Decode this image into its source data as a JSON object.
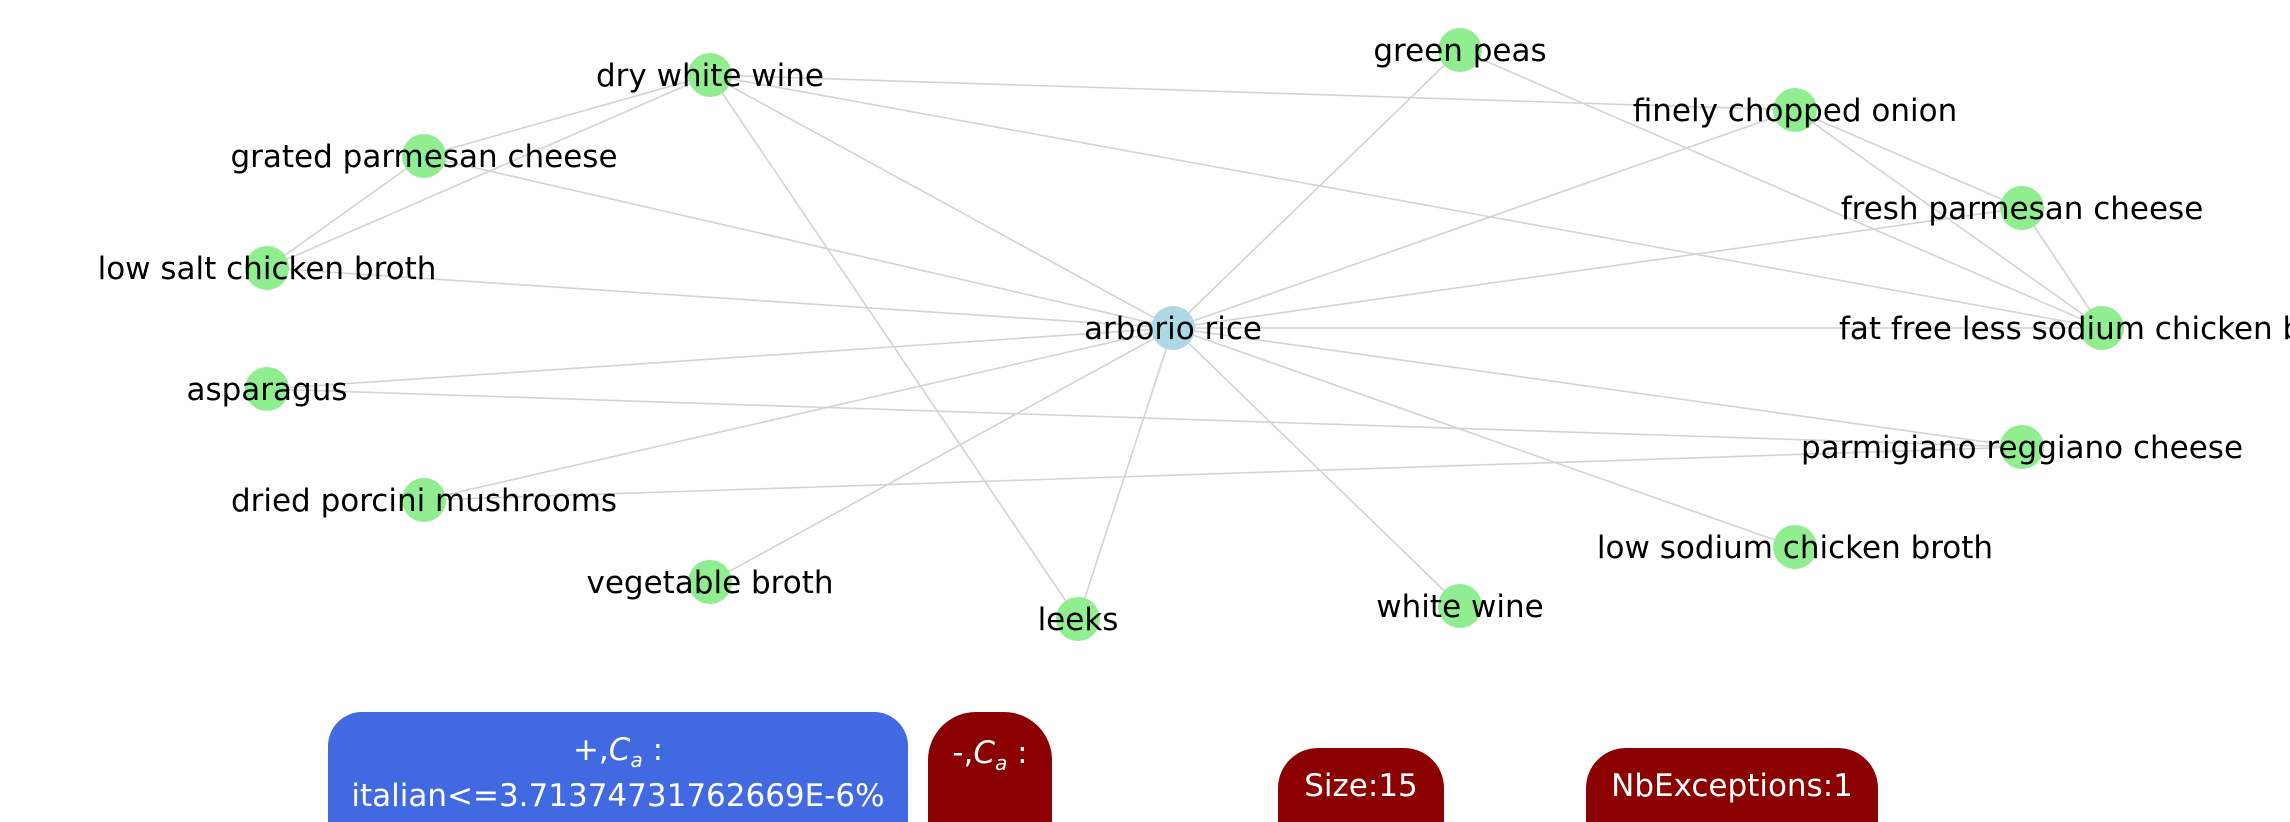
{
  "graph": {
    "center": {
      "id": "arborio",
      "label": "arborio rice",
      "color": "#add8e6"
    },
    "nodes": [
      {
        "id": "dry_white_wine",
        "label": "dry white wine"
      },
      {
        "id": "grated_parmesan",
        "label": "grated parmesan cheese"
      },
      {
        "id": "low_salt_chicken",
        "label": "low salt chicken broth"
      },
      {
        "id": "asparagus",
        "label": "asparagus"
      },
      {
        "id": "porcini",
        "label": "dried porcini mushrooms"
      },
      {
        "id": "vegetable_broth",
        "label": "vegetable broth"
      },
      {
        "id": "leeks",
        "label": "leeks"
      },
      {
        "id": "white_wine",
        "label": "white wine"
      },
      {
        "id": "low_sodium_chicken",
        "label": "low sodium chicken broth"
      },
      {
        "id": "parmigiano",
        "label": "parmigiano reggiano cheese"
      },
      {
        "id": "fat_free_chicken",
        "label": "fat free less sodium chicken broth"
      },
      {
        "id": "fresh_parmesan",
        "label": "fresh parmesan cheese"
      },
      {
        "id": "onion",
        "label": "finely chopped onion"
      },
      {
        "id": "green_peas",
        "label": "green peas"
      }
    ],
    "node_color": "#90ee90",
    "edge_color": "#d3d3d3",
    "edges": [
      [
        "arborio",
        "dry_white_wine"
      ],
      [
        "arborio",
        "grated_parmesan"
      ],
      [
        "arborio",
        "low_salt_chicken"
      ],
      [
        "arborio",
        "asparagus"
      ],
      [
        "arborio",
        "porcini"
      ],
      [
        "arborio",
        "vegetable_broth"
      ],
      [
        "arborio",
        "leeks"
      ],
      [
        "arborio",
        "white_wine"
      ],
      [
        "arborio",
        "low_sodium_chicken"
      ],
      [
        "arborio",
        "parmigiano"
      ],
      [
        "arborio",
        "fat_free_chicken"
      ],
      [
        "arborio",
        "fresh_parmesan"
      ],
      [
        "arborio",
        "onion"
      ],
      [
        "arborio",
        "green_peas"
      ],
      [
        "dry_white_wine",
        "grated_parmesan"
      ],
      [
        "dry_white_wine",
        "low_salt_chicken"
      ],
      [
        "dry_white_wine",
        "onion"
      ],
      [
        "dry_white_wine",
        "fat_free_chicken"
      ],
      [
        "dry_white_wine",
        "leeks"
      ],
      [
        "grated_parmesan",
        "low_salt_chicken"
      ],
      [
        "asparagus",
        "parmigiano"
      ],
      [
        "porcini",
        "parmigiano"
      ],
      [
        "green_peas",
        "fat_free_chicken"
      ],
      [
        "onion",
        "fresh_parmesan"
      ],
      [
        "onion",
        "fat_free_chicken"
      ],
      [
        "fresh_parmesan",
        "fat_free_chicken"
      ]
    ]
  },
  "badges": {
    "positive": {
      "prefix": "+,",
      "symbol": "C",
      "subscript": "a",
      "suffix": " :",
      "value": "italian<=3.71374731762669E-6%",
      "color": "#4169e1"
    },
    "negative": {
      "prefix": "-,",
      "symbol": "C",
      "subscript": "a",
      "suffix": " :",
      "color": "#8b0000"
    },
    "size": {
      "text": "Size:15",
      "color": "#8b0000"
    },
    "exceptions": {
      "text": "NbExceptions:1",
      "color": "#8b0000"
    }
  }
}
